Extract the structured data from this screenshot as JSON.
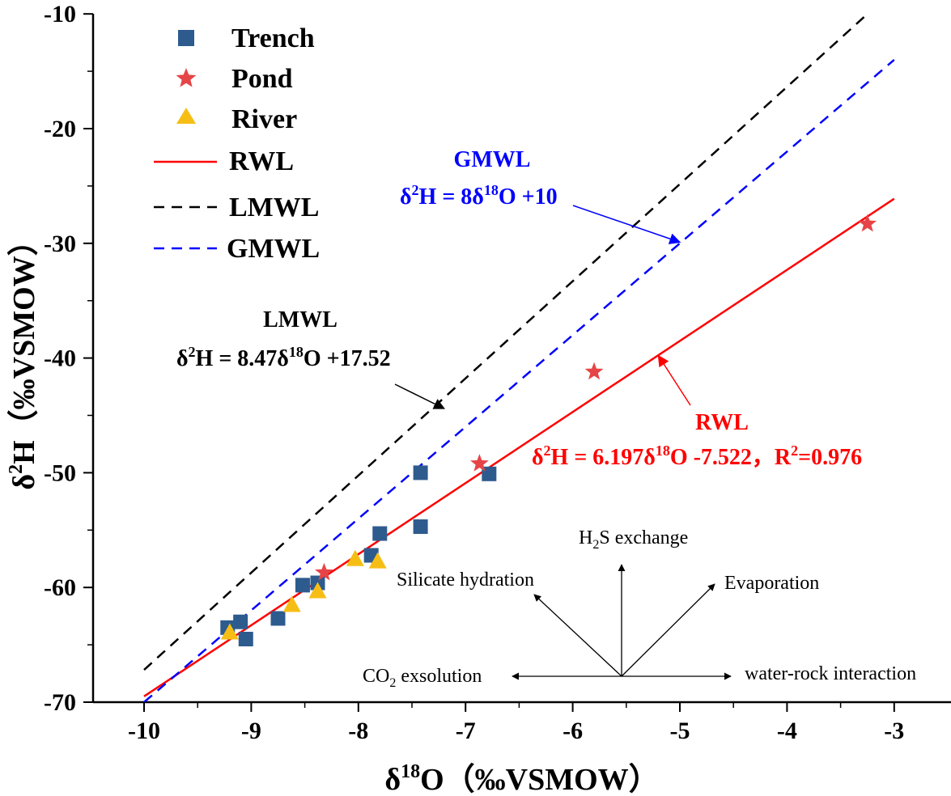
{
  "chart_data": {
    "type": "scatter",
    "xlabel": "δ18O（‰VSMOW）",
    "ylabel": "δ2H（‰VSMOW）",
    "xlim": [
      -10.5,
      -2.4
    ],
    "ylim": [
      -70,
      -10
    ],
    "x_ticks": [
      -10,
      -9,
      -8,
      -7,
      -6,
      -5,
      -4,
      -3
    ],
    "y_ticks": [
      -70,
      -60,
      -50,
      -40,
      -30,
      -20,
      -10
    ],
    "x_tick_labels": [
      "-10",
      "-9",
      "-8",
      "-7",
      "-6",
      "-5",
      "-4",
      "-3"
    ],
    "y_tick_labels": [
      "-70",
      "-60",
      "-50",
      "-40",
      "-30",
      "-20",
      "-10"
    ],
    "series": [
      {
        "name": "Trench",
        "marker": "square",
        "color": "#2E5B8E",
        "points": [
          {
            "x": -9.22,
            "y": -63.5
          },
          {
            "x": -9.1,
            "y": -63.0
          },
          {
            "x": -9.05,
            "y": -64.5
          },
          {
            "x": -8.75,
            "y": -62.7
          },
          {
            "x": -8.52,
            "y": -59.8
          },
          {
            "x": -8.38,
            "y": -59.6
          },
          {
            "x": -7.88,
            "y": -57.2
          },
          {
            "x": -7.8,
            "y": -55.3
          },
          {
            "x": -7.42,
            "y": -50.0
          },
          {
            "x": -7.42,
            "y": -54.7
          },
          {
            "x": -6.78,
            "y": -50.1
          }
        ]
      },
      {
        "name": "Pond",
        "marker": "star",
        "color": "#E64547",
        "points": [
          {
            "x": -8.32,
            "y": -58.7
          },
          {
            "x": -6.87,
            "y": -49.2
          },
          {
            "x": -5.8,
            "y": -41.2
          },
          {
            "x": -3.25,
            "y": -28.3
          }
        ]
      },
      {
        "name": "River",
        "marker": "triangle",
        "color": "#F6BE15",
        "points": [
          {
            "x": -9.2,
            "y": -63.9
          },
          {
            "x": -8.62,
            "y": -61.5
          },
          {
            "x": -8.38,
            "y": -60.3
          },
          {
            "x": -8.03,
            "y": -57.5
          },
          {
            "x": -7.82,
            "y": -57.7
          }
        ]
      }
    ],
    "lines": [
      {
        "name": "RWL",
        "color": "#FF0000",
        "dash": "solid",
        "slope": 6.197,
        "intercept": -7.522,
        "x_range": [
          -10.0,
          -3.0
        ]
      },
      {
        "name": "LMWL",
        "color": "#000000",
        "dash": "dashed",
        "slope": 8.47,
        "intercept": 17.52,
        "x_range": [
          -10.0,
          -3.0
        ]
      },
      {
        "name": "GMWL",
        "color": "#0000FF",
        "dash": "dashed",
        "slope": 8,
        "intercept": 10,
        "x_range": [
          -10.0,
          -3.0
        ]
      }
    ],
    "legend": {
      "position": "top-left",
      "entries": [
        "Trench",
        "Pond",
        "River",
        "RWL",
        "LMWL",
        "GMWL"
      ]
    },
    "annotations": {
      "gmwl": {
        "title": "GMWL",
        "equation": "δ2H = 8δ18O +10",
        "color": "#0000FF",
        "arrow_to": {
          "x": -5.0,
          "y": -29.9
        }
      },
      "lmwl": {
        "title": "LMWL",
        "equation": "δ2H = 8.47δ18O +17.52",
        "color": "#000000",
        "arrow_to": {
          "x": -7.2,
          "y": -44.4
        }
      },
      "rwl": {
        "title": "RWL",
        "equation": "δ2H = 6.197δ18O -7.522，R2=0.976",
        "color": "#FF0000",
        "arrow_to": {
          "x": -5.2,
          "y": -39.8
        }
      }
    },
    "process_diagram": {
      "labels": [
        "H2S exchange",
        "Silicate hydration",
        "Evaporation",
        "CO2 exsolution",
        "water-rock interaction"
      ]
    }
  }
}
